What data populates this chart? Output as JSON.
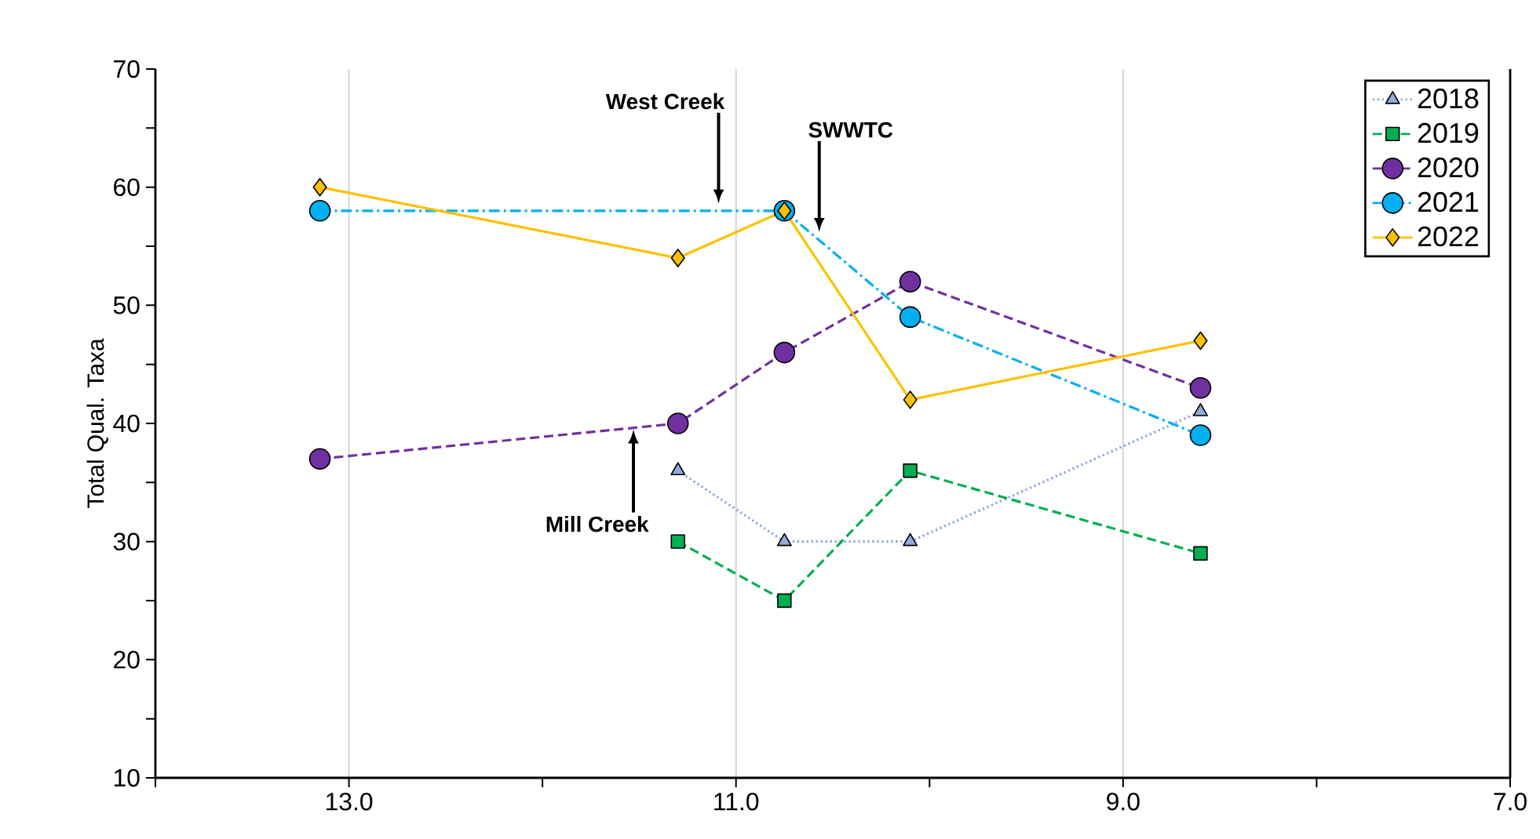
{
  "chart_data": {
    "type": "line",
    "ylabel": "Total Qual. Taxa",
    "xlim": [
      14,
      7
    ],
    "ylim": [
      10,
      70
    ],
    "xticks": [
      {
        "value": 14,
        "label": null
      },
      {
        "value": 13,
        "label": "13.0"
      },
      {
        "value": 12,
        "label": null
      },
      {
        "value": 11,
        "label": "11.0"
      },
      {
        "value": 10,
        "label": null
      },
      {
        "value": 9,
        "label": "9.0"
      },
      {
        "value": 8,
        "label": null
      },
      {
        "value": 7,
        "label": "7.0"
      }
    ],
    "yticks": [
      10,
      {
        "value": 15,
        "label": null
      },
      20,
      {
        "value": 25,
        "label": null
      },
      30,
      {
        "value": 35,
        "label": null
      },
      40,
      {
        "value": 45,
        "label": null
      },
      50,
      {
        "value": 55,
        "label": null
      },
      60,
      {
        "value": 65,
        "label": null
      },
      70
    ],
    "grid": "x",
    "legend": "top right",
    "series": [
      {
        "name": "2018",
        "color": "#8faadc",
        "marker": "triangle",
        "line_style": "dotted",
        "x": [
          11.3,
          10.75,
          10.1,
          8.6
        ],
        "values": [
          36,
          30,
          30,
          41
        ]
      },
      {
        "name": "2019",
        "color": "#00b050",
        "marker": "square",
        "line_style": "dashed",
        "x": [
          11.3,
          10.75,
          10.1,
          8.6
        ],
        "values": [
          30,
          25,
          36,
          29
        ]
      },
      {
        "name": "2020",
        "color": "#7030a0",
        "marker": "circle",
        "line_style": "dashed",
        "x": [
          13.15,
          11.3,
          10.75,
          10.1,
          8.6
        ],
        "values": [
          37,
          40,
          46,
          52,
          43
        ]
      },
      {
        "name": "2021",
        "color": "#00b0f0",
        "marker": "circle",
        "line_style": "dashdot",
        "x": [
          13.15,
          10.75,
          10.1,
          8.6
        ],
        "values": [
          58,
          58,
          49,
          39
        ]
      },
      {
        "name": "2022",
        "color": "#ffc000",
        "marker": "diamond",
        "line_style": "solid",
        "x": [
          13.15,
          11.3,
          10.75,
          10.1,
          8.6
        ],
        "values": [
          60,
          54,
          58,
          42,
          47
        ]
      }
    ],
    "annotations": [
      {
        "text": "West Creek",
        "x": 11.09,
        "y": 58.6
      },
      {
        "text": "SWWTC",
        "x": 10.57,
        "y": 56.2
      },
      {
        "text": "Mill Creek",
        "x": 11.53,
        "y": 39.5
      }
    ]
  }
}
